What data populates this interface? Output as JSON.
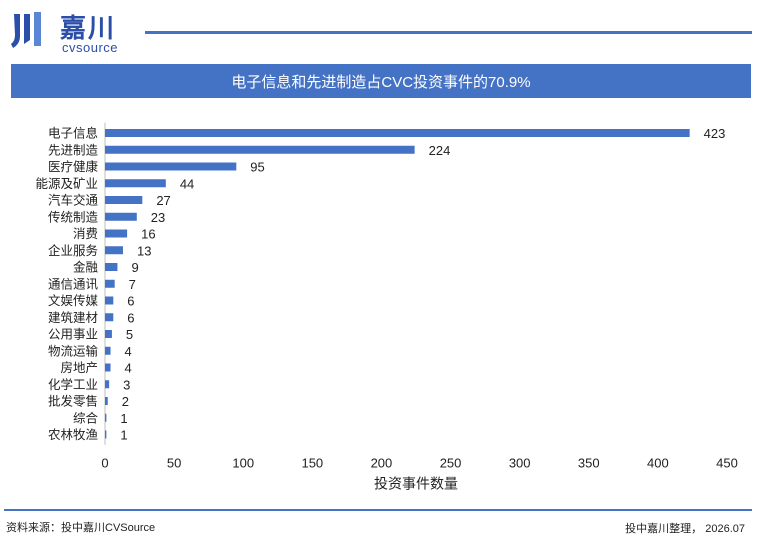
{
  "logo": {
    "cn": "嘉川",
    "en": "cvsource",
    "icon": "jiachuan-logo-icon",
    "color": "#2b4fa8"
  },
  "chart_data": {
    "type": "bar",
    "orientation": "horizontal",
    "title": "电子信息和先进制造占CVC投资事件的70.9%",
    "xlabel": "投资事件数量",
    "ylabel": "",
    "xlim": [
      0,
      450
    ],
    "xticks": [
      0,
      50,
      100,
      150,
      200,
      250,
      300,
      350,
      400,
      450
    ],
    "categories": [
      "电子信息",
      "先进制造",
      "医疗健康",
      "能源及矿业",
      "汽车交通",
      "传统制造",
      "消费",
      "企业服务",
      "金融",
      "通信通讯",
      "文娱传媒",
      "建筑建材",
      "公用事业",
      "物流运输",
      "房地产",
      "化学工业",
      "批发零售",
      "综合",
      "农林牧渔"
    ],
    "values": [
      423,
      224,
      95,
      44,
      27,
      23,
      16,
      13,
      9,
      7,
      6,
      6,
      5,
      4,
      4,
      3,
      2,
      1,
      1
    ],
    "bar_color": "#4472c4",
    "grid": false,
    "legend": "none"
  },
  "footer": {
    "source": "资料来源：投中嘉川CVSource",
    "credit": "投中嘉川整理， 2026.07"
  },
  "colors": {
    "accent": "#4472c4"
  }
}
